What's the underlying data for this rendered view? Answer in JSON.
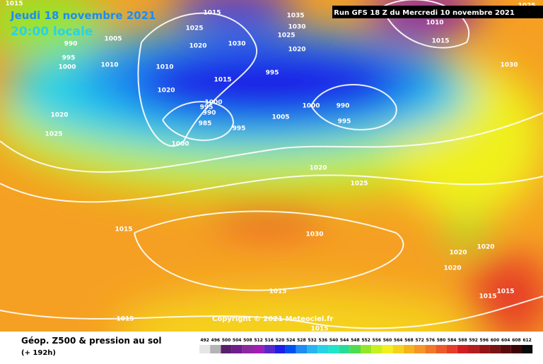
{
  "header": {
    "date": "Jeudi 18 novembre 2021",
    "time": "20:00 locale",
    "run": "Run GFS 18 Z du Mercredi 10 novembre 2021"
  },
  "footer": {
    "title": "Géop. Z500 & pression au sol",
    "lead": "(+ 192h)",
    "copyright": "Copyright © 2021 Meteociel.fr"
  },
  "isobar_labels": [
    1015,
    1005,
    990,
    995,
    1000,
    1015,
    1025,
    1020,
    1030,
    1035,
    1030,
    1025,
    1020,
    1010,
    1010,
    1015,
    995,
    1020,
    1000,
    995,
    990,
    985,
    995,
    1005,
    1000,
    990,
    995,
    1000,
    1020,
    1025,
    1030,
    1010,
    1015,
    1025,
    1020,
    1025,
    1015,
    1030,
    1020,
    1020,
    1020,
    1015,
    1015,
    1015,
    1015,
    1015
  ],
  "colorbar": {
    "labels": [
      492,
      496,
      500,
      504,
      508,
      512,
      516,
      520,
      524,
      528,
      532,
      536,
      540,
      544,
      548,
      552,
      556,
      560,
      564,
      568,
      572,
      576,
      580,
      584,
      588,
      592,
      596,
      600,
      604,
      608,
      612
    ],
    "colors": [
      "#e6e6e6",
      "#b4b4b4",
      "#5a1e6e",
      "#6e1e8c",
      "#8c28a0",
      "#a01eb4",
      "#5a28c8",
      "#1e1ee6",
      "#0050f0",
      "#1e8cf0",
      "#28b4f0",
      "#28d2e6",
      "#1ee6c8",
      "#28dc96",
      "#50dc50",
      "#96e628",
      "#c8f01e",
      "#f0f01e",
      "#f5d21e",
      "#f5b41e",
      "#f59628",
      "#f07828",
      "#eb5a28",
      "#e63c28",
      "#d21e1e",
      "#b41e1e",
      "#961414",
      "#781414",
      "#5a0a0a",
      "#3c0505",
      "#0a0a0a"
    ]
  }
}
